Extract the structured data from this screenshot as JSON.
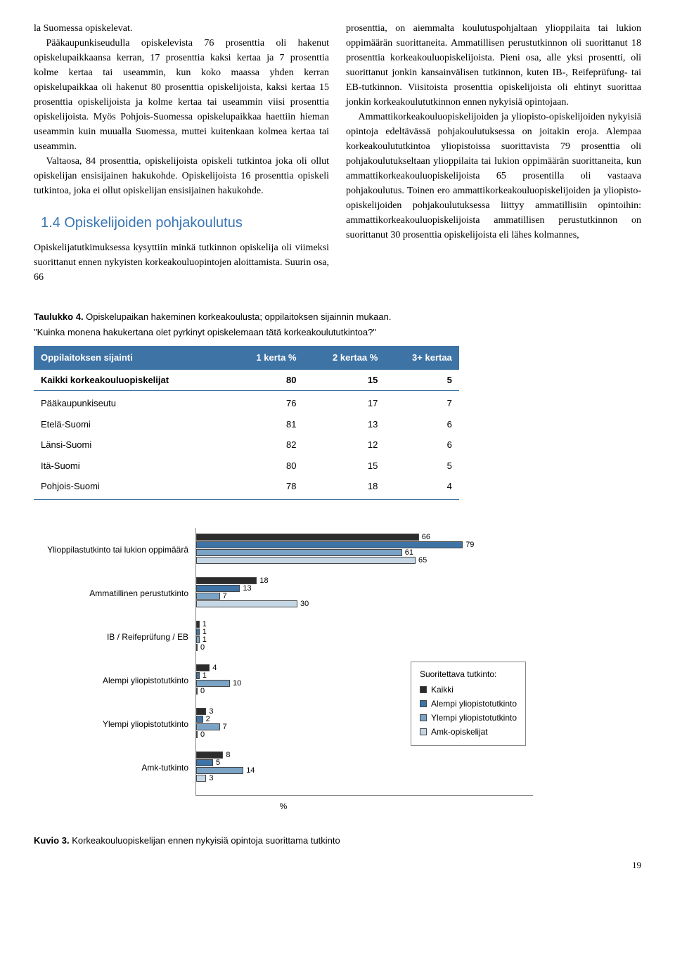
{
  "col1": {
    "p1a": "la Suomessa opiskelevat.",
    "p1": "Pääkaupunkiseudulla opiskelevista 76 prosenttia oli hakenut opiskelupaikkaansa kerran, 17 prosenttia kaksi kertaa ja 7 prosenttia kolme kertaa tai useammin, kun koko maassa yhden kerran opiskelupaikkaa oli hakenut 80 prosenttia opiskelijoista, kaksi kertaa 15 prosenttia opiskelijoista ja kolme kertaa tai useammin viisi prosenttia opiskelijoista. Myös Pohjois-Suomessa opiskelupaikkaa haettiin hieman useammin kuin muualla Suomessa, muttei kuitenkaan kolmea kertaa tai useammin.",
    "p2": "Valtaosa, 84 prosenttia, opiskelijoista opiskeli tutkintoa joka oli ollut opiskelijan ensisijainen hakukohde. Opiskelijoista 16 prosenttia opiskeli tutkintoa, joka ei ollut opiskelijan ensisijainen hakukohde.",
    "heading": "1.4 Opiskelijoiden pohjakoulutus",
    "p3": "Opiskelijatutkimuksessa kysyttiin minkä tutkinnon opiskelija oli viimeksi suorittanut ennen nykyisten korkeakouluopintojen aloittamista. Suurin osa, 66"
  },
  "col2": {
    "p1": "prosenttia, on aiemmalta koulutuspohjaltaan ylioppilaita tai lukion oppimäärän suorittaneita. Ammatillisen perustutkinnon oli suorittanut 18 prosenttia korkeakouluopiskelijoista. Pieni osa, alle yksi prosentti, oli suorittanut jonkin kansainvälisen tutkinnon, kuten IB-, Reifeprüfung- tai EB-tutkinnon. Viisitoista prosenttia opiskelijoista oli ehtinyt suorittaa jonkin korkeakoulututkinnon ennen nykyisiä opintojaan.",
    "p2": "Ammattikorkeakouluopiskelijoiden ja yliopisto-opiskelijoiden nykyisiä opintoja edeltävässä pohjakoulutuksessa on joitakin eroja. Alempaa korkeakoulututkintoa yliopistoissa suorittavista 79 prosenttia oli pohjakoulutukseltaan ylioppilaita tai lukion oppimäärän suorittaneita, kun ammattikorkeakouluopiskelijoista 65 prosentilla oli vastaava pohjakoulutus. Toinen ero ammattikorkeakouluopiskelijoiden ja yliopisto-opiskelijoiden pohjakoulutuksessa liittyy ammatillisiin opintoihin: ammattikorkeakouluopiskelijoista ammatillisen perustutkinnon on suorittanut 30 prosenttia opiskelijoista eli lähes kolmannes,"
  },
  "table": {
    "title_bold": "Taulukko 4.",
    "title_rest": " Opiskelupaikan hakeminen korkeakoulusta; oppilaitoksen sijainnin mukaan.",
    "subtitle": "\"Kuinka monena hakukertana olet pyrkinyt opiskelemaan tätä korkeakoulututkintoa?\"",
    "headers": [
      "Oppilaitoksen sijainti",
      "1 kerta %",
      "2 kertaa %",
      "3+ kertaa"
    ],
    "total_row": [
      "Kaikki korkeakouluopiskelijat",
      "80",
      "15",
      "5"
    ],
    "rows": [
      [
        "Pääkaupunkiseutu",
        "76",
        "17",
        "7"
      ],
      [
        "Etelä-Suomi",
        "81",
        "13",
        "6"
      ],
      [
        "Länsi-Suomi",
        "82",
        "12",
        "6"
      ],
      [
        "Itä-Suomi",
        "80",
        "15",
        "5"
      ],
      [
        "Pohjois-Suomi",
        "78",
        "18",
        "4"
      ]
    ]
  },
  "chart": {
    "xmax": 100,
    "colors": {
      "kaikki": "#2c2c2c",
      "alempi": "#3e73a6",
      "ylempi": "#7aa3c5",
      "amk": "#c5d6e4"
    },
    "categories": [
      {
        "label": "Ylioppilastutkinto tai lukion oppimäärä",
        "vals": [
          66,
          79,
          61,
          65
        ]
      },
      {
        "label": "Ammatillinen perustutkinto",
        "vals": [
          18,
          13,
          7,
          30
        ]
      },
      {
        "label": "IB / Reifeprüfung / EB",
        "vals": [
          1,
          1,
          1,
          0
        ]
      },
      {
        "label": "Alempi yliopistotutkinto",
        "vals": [
          4,
          1,
          10,
          0
        ]
      },
      {
        "label": "Ylempi yliopistotutkinto",
        "vals": [
          3,
          2,
          7,
          0
        ]
      },
      {
        "label": "Amk-tutkinto",
        "vals": [
          8,
          5,
          14,
          3
        ]
      }
    ],
    "legend_title": "Suoritettava tutkinto:",
    "legend": [
      "Kaikki",
      "Alempi yliopistotutkinto",
      "Ylempi yliopistotutkinto",
      "Amk-opiskelijat"
    ],
    "xlabel": "%"
  },
  "caption": {
    "bold": "Kuvio 3.",
    "rest": " Korkeakouluopiskelijan ennen nykyisiä opintoja suorittama tutkinto"
  },
  "page": "19"
}
